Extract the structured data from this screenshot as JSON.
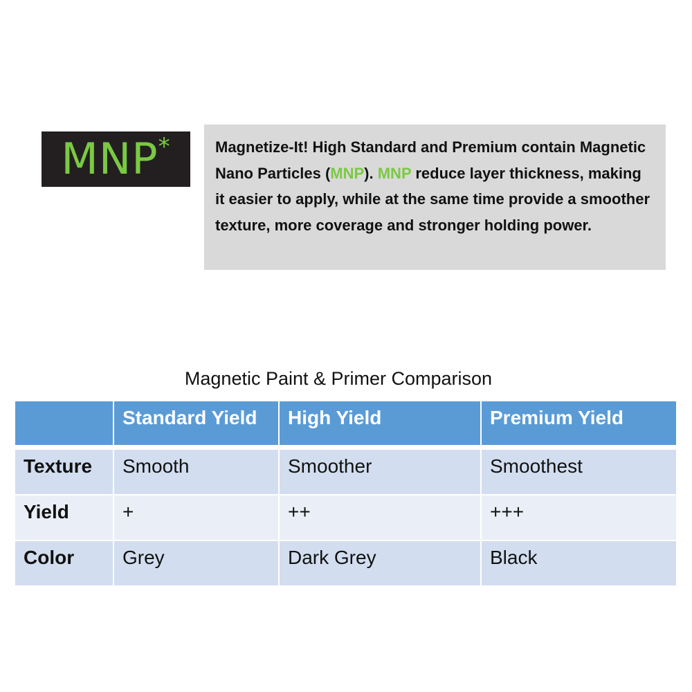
{
  "logo": {
    "text": "MNP",
    "mark": "*",
    "bg": "#231f20",
    "color": "#7ac943"
  },
  "description": {
    "part1": "Magnetize-It! High Standard and Premium contain Magnetic Nano Particles (",
    "mnp1": "MNP",
    "part2": "). ",
    "mnp2": "MNP",
    "part3": " reduce layer thickness, making it easier to apply, while at the same time provide a smoother texture, more coverage and stronger holding power."
  },
  "table": {
    "title": "Magnetic Paint & Primer Comparison",
    "headers": [
      "",
      "Standard Yield",
      "High Yield",
      "Premium Yield"
    ],
    "rows": [
      [
        "Texture",
        "Smooth",
        "Smoother",
        "Smoothest"
      ],
      [
        "Yield",
        "+",
        "++",
        "+++"
      ],
      [
        "Color",
        "Grey",
        "Dark Grey",
        "Black"
      ]
    ],
    "header_color": "#5b9bd5"
  }
}
